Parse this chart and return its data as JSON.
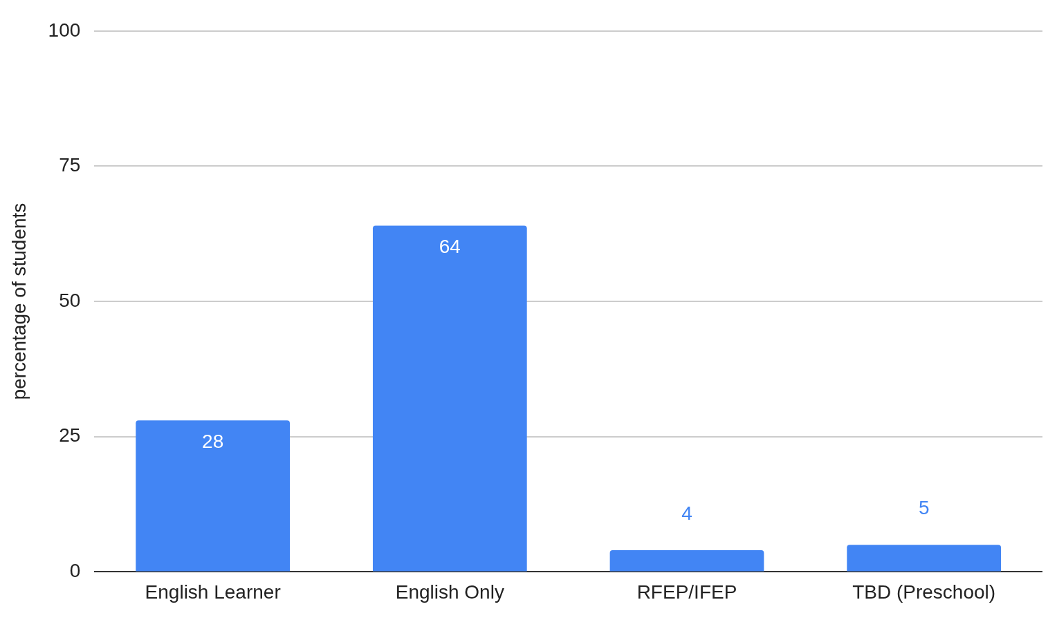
{
  "chart_data": {
    "type": "bar",
    "ylabel": "percentage of students",
    "categories": [
      "English Learner",
      "English Only",
      "RFEP/IFEP",
      "TBD (Preschool)"
    ],
    "values": [
      28,
      64,
      4,
      5
    ],
    "color": "#4285f4",
    "ylim": [
      0,
      100
    ],
    "yticks": [
      0,
      25,
      50,
      75,
      100
    ],
    "grid": "y",
    "data_labels": true
  }
}
